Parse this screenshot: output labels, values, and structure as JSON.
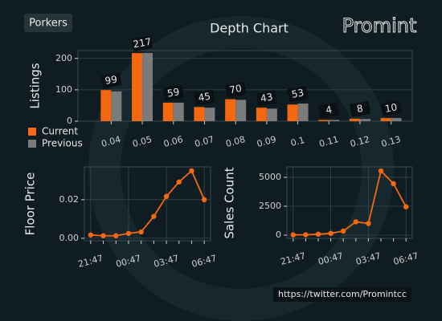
{
  "header": {
    "badge": "Porkers",
    "logo": "Promint"
  },
  "footer": {
    "url": "https://twitter.com/Promintcc"
  },
  "chart_data": [
    {
      "type": "bar",
      "title": "Depth Chart",
      "y_label": "Listings",
      "categories": [
        "0.04",
        "0.05",
        "0.06",
        "0.07",
        "0.08",
        "0.09",
        "0.1",
        "0.11",
        "0.12",
        "0.13"
      ],
      "series": [
        {
          "name": "Current",
          "color": "#f5680f",
          "values": [
            99,
            217,
            59,
            45,
            70,
            43,
            53,
            4,
            8,
            10
          ]
        },
        {
          "name": "Previous",
          "color": "#7b7b7b",
          "values": [
            95,
            217,
            59,
            43,
            68,
            40,
            56,
            4,
            7,
            10
          ]
        }
      ],
      "ylim": [
        0,
        225
      ],
      "yticks": [
        0,
        100,
        200
      ],
      "grid": true,
      "legend": "lower left"
    },
    {
      "type": "line",
      "y_label": "Floor Price",
      "categories": [
        "21:47",
        null,
        null,
        "00:47",
        null,
        null,
        "03:47",
        null,
        null,
        "06:47"
      ],
      "series": [
        {
          "name": "Floor Price",
          "color": "#f5680f",
          "values": [
            0.0017,
            0.0013,
            0.0013,
            0.0025,
            0.0033,
            0.0113,
            0.0217,
            0.0292,
            0.035,
            0.02
          ]
        }
      ],
      "ylim": [
        -0.0013,
        0.037
      ],
      "yticks": [
        {
          "value": 0,
          "label": "0.00"
        },
        {
          "value": 0.02,
          "label": "0.02"
        }
      ],
      "grid": true
    },
    {
      "type": "line",
      "y_label": "Sales Count",
      "categories": [
        "21:47",
        null,
        null,
        "00:47",
        null,
        null,
        "03:47",
        null,
        null,
        "06:47"
      ],
      "series": [
        {
          "name": "Sales Count",
          "color": "#f5680f",
          "values": [
            20,
            30,
            80,
            150,
            350,
            1150,
            1000,
            5550,
            4450,
            2450
          ]
        }
      ],
      "ylim": [
        -280,
        5900
      ],
      "yticks": [
        0,
        2500,
        5000
      ],
      "grid": true
    }
  ]
}
